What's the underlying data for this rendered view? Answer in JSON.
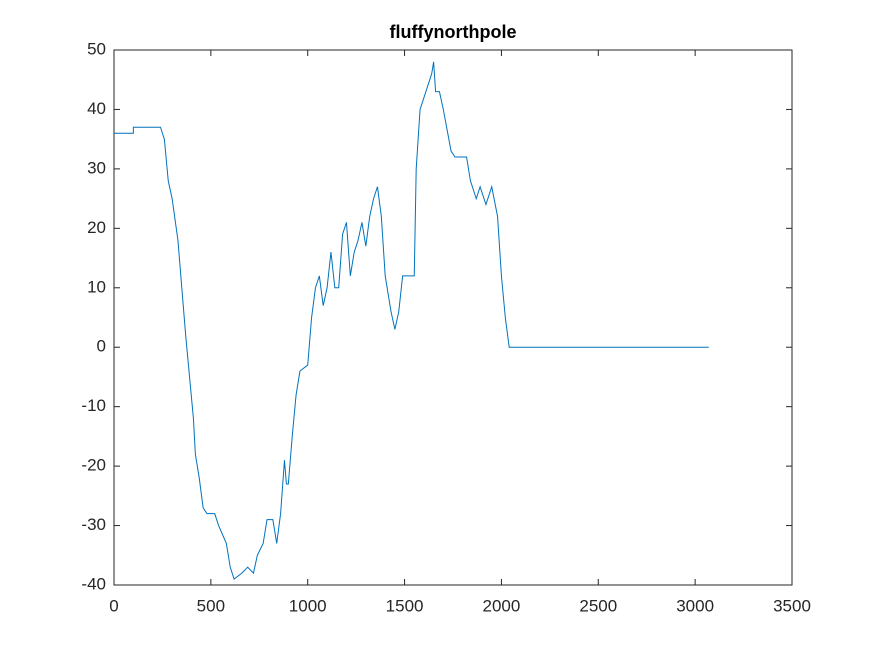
{
  "chart_data": {
    "type": "line",
    "title": "fluffynorthpole",
    "x": [
      0,
      100,
      100,
      240,
      260,
      280,
      300,
      330,
      350,
      370,
      390,
      410,
      420,
      440,
      460,
      480,
      520,
      540,
      580,
      600,
      620,
      660,
      690,
      720,
      740,
      770,
      790,
      820,
      840,
      860,
      880,
      890,
      900,
      920,
      940,
      960,
      1000,
      1020,
      1040,
      1060,
      1080,
      1100,
      1120,
      1140,
      1160,
      1180,
      1200,
      1220,
      1240,
      1260,
      1280,
      1300,
      1320,
      1340,
      1360,
      1380,
      1400,
      1430,
      1450,
      1470,
      1490,
      1550,
      1560,
      1580,
      1600,
      1640,
      1650,
      1660,
      1680,
      1700,
      1740,
      1760,
      1820,
      1840,
      1870,
      1890,
      1920,
      1950,
      1980,
      2000,
      2020,
      2040,
      3070
    ],
    "series": [
      {
        "name": "fluffynorthpole",
        "color": "#0072bd",
        "values": [
          36,
          36,
          37,
          37,
          35,
          28,
          25,
          18,
          10,
          2,
          -5,
          -12,
          -18,
          -22,
          -27,
          -28,
          -28,
          -30,
          -33,
          -37,
          -39,
          -38,
          -37,
          -38,
          -35,
          -33,
          -29,
          -29,
          -33,
          -28,
          -19,
          -23,
          -23,
          -15,
          -8,
          -4,
          -3,
          5,
          10,
          12,
          7,
          10,
          16,
          10,
          10,
          19,
          21,
          12,
          16,
          18,
          21,
          17,
          22,
          25,
          27,
          22,
          12,
          6,
          3,
          6,
          12,
          12,
          30,
          40,
          42,
          46,
          48,
          43,
          43,
          40,
          33,
          32,
          32,
          28,
          25,
          27,
          24,
          27,
          22,
          12,
          5,
          0,
          0
        ]
      }
    ],
    "xlim": [
      0,
      3500
    ],
    "xticks": [
      0,
      500,
      1000,
      1500,
      2000,
      2500,
      3000,
      3500
    ],
    "ylim": [
      -40,
      50
    ],
    "yticks": [
      -40,
      -30,
      -20,
      -10,
      0,
      10,
      20,
      30,
      40,
      50
    ]
  }
}
